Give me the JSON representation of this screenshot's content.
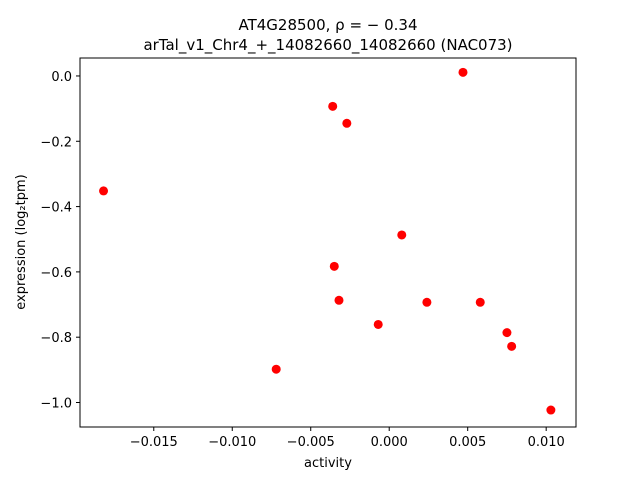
{
  "chart_data": {
    "type": "scatter",
    "title_line1": "AT4G28500, ρ = − 0.34",
    "title_line2": "arTal_v1_Chr4_+_14082660_14082660 (NAC073)",
    "xlabel": "activity",
    "ylabel": "expression (log₂tpm)",
    "xlim": [
      -0.0197,
      0.0119
    ],
    "ylim": [
      -1.075,
      0.055
    ],
    "x_ticks": [
      -0.015,
      -0.01,
      -0.005,
      0.0,
      0.005,
      0.01
    ],
    "x_tick_labels": [
      "−0.015",
      "−0.010",
      "−0.005",
      "0.000",
      "0.005",
      "0.010"
    ],
    "y_ticks": [
      0.0,
      -0.2,
      -0.4,
      -0.6,
      -0.8,
      -1.0
    ],
    "y_tick_labels": [
      "0.0",
      "−0.2",
      "−0.4",
      "−0.6",
      "−0.8",
      "−1.0"
    ],
    "grid": false,
    "marker_color": "#ff0000",
    "points": [
      {
        "x": -0.0182,
        "y": -0.352
      },
      {
        "x": -0.0036,
        "y": -0.093
      },
      {
        "x": -0.0027,
        "y": -0.145
      },
      {
        "x": 0.0047,
        "y": 0.011
      },
      {
        "x": 0.0008,
        "y": -0.487
      },
      {
        "x": -0.0035,
        "y": -0.583
      },
      {
        "x": -0.0032,
        "y": -0.687
      },
      {
        "x": -0.0007,
        "y": -0.761
      },
      {
        "x": 0.0024,
        "y": -0.693
      },
      {
        "x": 0.0058,
        "y": -0.693
      },
      {
        "x": 0.0075,
        "y": -0.786
      },
      {
        "x": 0.0078,
        "y": -0.828
      },
      {
        "x": -0.0072,
        "y": -0.898
      },
      {
        "x": 0.0103,
        "y": -1.023
      }
    ]
  }
}
